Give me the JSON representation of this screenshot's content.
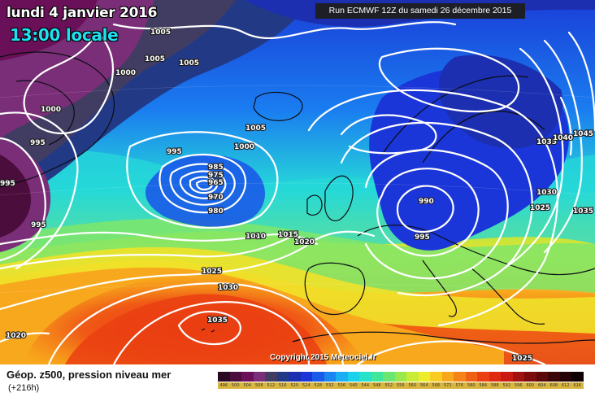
{
  "header": {
    "date_label": "lundi 4 janvier 2016",
    "time_label": "13:00 locale",
    "run_label": "Run ECMWF 12Z du samedi 26 décembre 2015",
    "copyright": "Copyright 2015 Meteociel.fr"
  },
  "footer": {
    "title": "Géop. z500, pression niveau mer",
    "lead_time": "(+216h)"
  },
  "scale": [
    {
      "value": "496",
      "color": "#2a0a22"
    },
    {
      "value": "500",
      "color": "#4a0d3c"
    },
    {
      "value": "504",
      "color": "#6a1058"
    },
    {
      "value": "508",
      "color": "#7a2e78"
    },
    {
      "value": "512",
      "color": "#403c62"
    },
    {
      "value": "516",
      "color": "#223a86"
    },
    {
      "value": "520",
      "color": "#1b2fb0"
    },
    {
      "value": "524",
      "color": "#1b36d8"
    },
    {
      "value": "528",
      "color": "#1a5ae8"
    },
    {
      "value": "532",
      "color": "#1c86f0"
    },
    {
      "value": "536",
      "color": "#1aaef2"
    },
    {
      "value": "540",
      "color": "#1ad2ec"
    },
    {
      "value": "544",
      "color": "#26e2c8"
    },
    {
      "value": "548",
      "color": "#40e69a"
    },
    {
      "value": "552",
      "color": "#6ae672"
    },
    {
      "value": "556",
      "color": "#9ae84c"
    },
    {
      "value": "560",
      "color": "#c8ec36"
    },
    {
      "value": "564",
      "color": "#ecec2a"
    },
    {
      "value": "568",
      "color": "#f8cc20"
    },
    {
      "value": "572",
      "color": "#f8a81c"
    },
    {
      "value": "576",
      "color": "#f48418"
    },
    {
      "value": "580",
      "color": "#f06014"
    },
    {
      "value": "584",
      "color": "#ea4012"
    },
    {
      "value": "588",
      "color": "#e02a10"
    },
    {
      "value": "592",
      "color": "#c81a10"
    },
    {
      "value": "596",
      "color": "#a0120e"
    },
    {
      "value": "600",
      "color": "#7c0c0c"
    },
    {
      "value": "604",
      "color": "#5c0808"
    },
    {
      "value": "608",
      "color": "#3c0606"
    },
    {
      "value": "612",
      "color": "#240404"
    },
    {
      "value": "616",
      "color": "#100202"
    }
  ],
  "isobar_labels": [
    {
      "id": "iso-1005-a",
      "text": "1005"
    },
    {
      "id": "iso-1005-b",
      "text": "1005"
    },
    {
      "id": "iso-1005-c",
      "text": "1005"
    },
    {
      "id": "iso-1000-a",
      "text": "1000"
    },
    {
      "id": "iso-1000-b",
      "text": "1000"
    },
    {
      "id": "iso-995-a",
      "text": "995"
    },
    {
      "id": "iso-995-b",
      "text": "995"
    },
    {
      "id": "iso-995-c",
      "text": "995"
    },
    {
      "id": "iso-1005-d",
      "text": "1005"
    },
    {
      "id": "iso-1000-c",
      "text": "1000"
    },
    {
      "id": "iso-985",
      "text": "985"
    },
    {
      "id": "iso-975",
      "text": "975"
    },
    {
      "id": "iso-965",
      "text": "965"
    },
    {
      "id": "iso-970",
      "text": "970"
    },
    {
      "id": "iso-980",
      "text": "980"
    },
    {
      "id": "iso-1010",
      "text": "1010"
    },
    {
      "id": "iso-1015",
      "text": "1015"
    },
    {
      "id": "iso-1020-a",
      "text": "1020"
    },
    {
      "id": "iso-1025-a",
      "text": "1025"
    },
    {
      "id": "iso-1030-a",
      "text": "1030"
    },
    {
      "id": "iso-1035-a",
      "text": "1035"
    },
    {
      "id": "iso-1020-b",
      "text": "1020"
    },
    {
      "id": "iso-990",
      "text": "990"
    },
    {
      "id": "iso-995-d",
      "text": "995"
    },
    {
      "id": "iso-1035-b",
      "text": "1035"
    },
    {
      "id": "iso-1040",
      "text": "1040"
    },
    {
      "id": "iso-1045",
      "text": "1045"
    },
    {
      "id": "iso-1030-b",
      "text": "1030"
    },
    {
      "id": "iso-1025-b",
      "text": "1025"
    },
    {
      "id": "iso-1035-c",
      "text": "1035"
    },
    {
      "id": "iso-1025-c",
      "text": "1025"
    },
    {
      "id": "iso-995-e",
      "text": "995"
    }
  ]
}
